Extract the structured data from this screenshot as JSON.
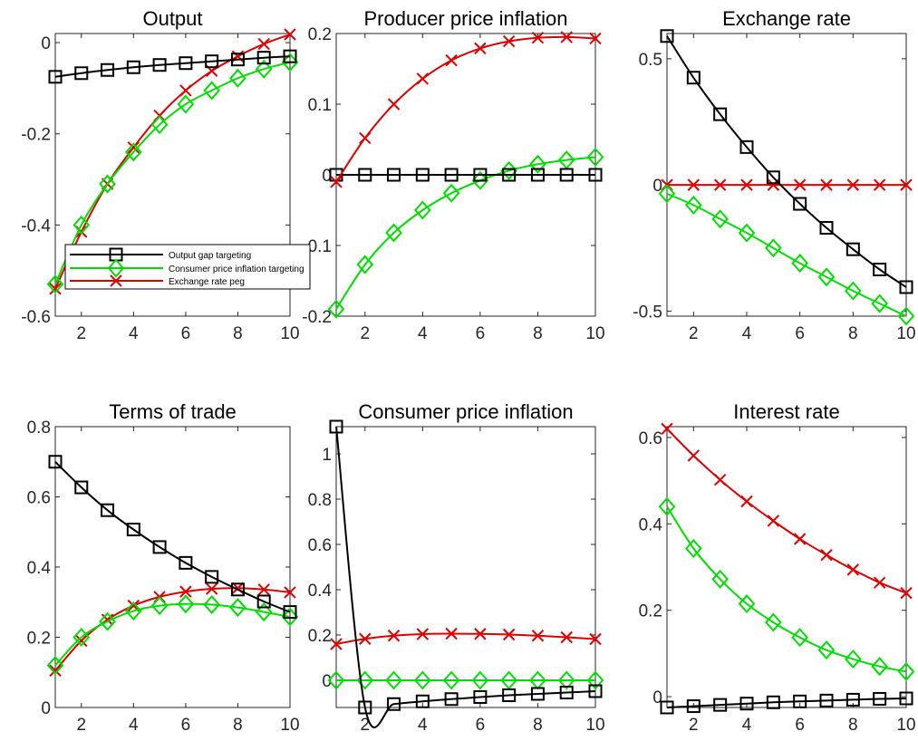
{
  "colors": {
    "output_gap": "#000000",
    "cpi_targeting": "#00e000",
    "peg": "#e00000"
  },
  "legend": {
    "entries": [
      {
        "label": "Output gap targeting",
        "color": "#000000",
        "marker": "square"
      },
      {
        "label": "Consumer price inflation targeting",
        "color": "#00e000",
        "marker": "diamond"
      },
      {
        "label": "Exchange rate peg",
        "color": "#e00000",
        "marker": "x"
      }
    ]
  },
  "chart_data": [
    {
      "type": "line",
      "title": "Output",
      "x": [
        1,
        2,
        3,
        4,
        5,
        6,
        7,
        8,
        9,
        10
      ],
      "xlim": [
        1,
        10
      ],
      "ylim": [
        -0.6,
        0.02
      ],
      "xticks": [
        2,
        4,
        6,
        8,
        10
      ],
      "yticks": [
        -0.6,
        -0.4,
        -0.2,
        0
      ],
      "ytick_labels": [
        "-0.6",
        "-0.4",
        "-0.2",
        "0"
      ],
      "series": [
        {
          "name": "Exchange rate peg",
          "color": "#e00000",
          "marker": "x",
          "values": [
            -0.54,
            -0.415,
            -0.31,
            -0.23,
            -0.16,
            -0.105,
            -0.062,
            -0.03,
            -0.003,
            0.018
          ]
        },
        {
          "name": "Consumer price inflation targeting",
          "color": "#00e000",
          "marker": "diamond",
          "values": [
            -0.53,
            -0.4,
            -0.31,
            -0.24,
            -0.18,
            -0.135,
            -0.105,
            -0.078,
            -0.058,
            -0.043
          ]
        },
        {
          "name": "Output gap targeting",
          "color": "#000000",
          "marker": "square",
          "values": [
            -0.075,
            -0.067,
            -0.06,
            -0.054,
            -0.049,
            -0.045,
            -0.041,
            -0.037,
            -0.033,
            -0.03
          ]
        }
      ]
    },
    {
      "type": "line",
      "title": "Producer price inflation",
      "x": [
        1,
        2,
        3,
        4,
        5,
        6,
        7,
        8,
        9,
        10
      ],
      "xlim": [
        1,
        10
      ],
      "ylim": [
        -0.2,
        0.2
      ],
      "xticks": [
        2,
        4,
        6,
        8,
        10
      ],
      "yticks": [
        -0.2,
        -0.1,
        0,
        0.1,
        0.2
      ],
      "ytick_labels": [
        "-0.2",
        "-0.1",
        "0",
        "0.1",
        "0.2"
      ],
      "series": [
        {
          "name": "Consumer price inflation targeting",
          "color": "#00e000",
          "marker": "diamond",
          "values": [
            -0.19,
            -0.127,
            -0.082,
            -0.05,
            -0.026,
            -0.008,
            0.006,
            0.015,
            0.021,
            0.025
          ]
        },
        {
          "name": "Output gap targeting",
          "color": "#000000",
          "marker": "square",
          "values": [
            0,
            0,
            0,
            0,
            0,
            0,
            0,
            0,
            0,
            0
          ]
        },
        {
          "name": "Exchange rate peg",
          "color": "#e00000",
          "marker": "x",
          "values": [
            -0.01,
            0.052,
            0.1,
            0.136,
            0.162,
            0.179,
            0.189,
            0.194,
            0.195,
            0.193
          ]
        }
      ]
    },
    {
      "type": "line",
      "title": "Exchange rate",
      "x": [
        1,
        2,
        3,
        4,
        5,
        6,
        7,
        8,
        9,
        10
      ],
      "xlim": [
        1,
        10
      ],
      "ylim": [
        -0.52,
        0.6
      ],
      "xticks": [
        2,
        4,
        6,
        8,
        10
      ],
      "yticks": [
        -0.5,
        0,
        0.5
      ],
      "ytick_labels": [
        "-0.5",
        "0",
        "0.5"
      ],
      "series": [
        {
          "name": "Exchange rate peg",
          "color": "#e00000",
          "marker": "x",
          "values": [
            0,
            0,
            0,
            0,
            0,
            0,
            0,
            0,
            0,
            0
          ]
        },
        {
          "name": "Consumer price inflation targeting",
          "color": "#00e000",
          "marker": "diamond",
          "values": [
            -0.035,
            -0.08,
            -0.135,
            -0.19,
            -0.25,
            -0.31,
            -0.365,
            -0.42,
            -0.47,
            -0.52
          ]
        },
        {
          "name": "Output gap targeting",
          "color": "#000000",
          "marker": "square",
          "values": [
            0.59,
            0.425,
            0.28,
            0.15,
            0.03,
            -0.075,
            -0.17,
            -0.255,
            -0.335,
            -0.405
          ]
        }
      ]
    },
    {
      "type": "line",
      "title": "Terms of trade",
      "x": [
        1,
        2,
        3,
        4,
        5,
        6,
        7,
        8,
        9,
        10
      ],
      "xlim": [
        1,
        10
      ],
      "ylim": [
        0,
        0.8
      ],
      "xticks": [
        2,
        4,
        6,
        8,
        10
      ],
      "yticks": [
        0,
        0.2,
        0.4,
        0.6,
        0.8
      ],
      "ytick_labels": [
        "0",
        "0.2",
        "0.4",
        "0.6",
        "0.8"
      ],
      "series": [
        {
          "name": "Exchange rate peg",
          "color": "#e00000",
          "marker": "x",
          "values": [
            0.105,
            0.19,
            0.25,
            0.29,
            0.315,
            0.33,
            0.338,
            0.34,
            0.336,
            0.328
          ]
        },
        {
          "name": "Consumer price inflation targeting",
          "color": "#00e000",
          "marker": "diamond",
          "values": [
            0.12,
            0.2,
            0.245,
            0.275,
            0.29,
            0.295,
            0.293,
            0.285,
            0.272,
            0.258
          ]
        },
        {
          "name": "Output gap targeting",
          "color": "#000000",
          "marker": "square",
          "values": [
            0.7,
            0.627,
            0.562,
            0.507,
            0.457,
            0.412,
            0.372,
            0.336,
            0.302,
            0.272
          ]
        }
      ]
    },
    {
      "type": "line",
      "title": "Consumer price inflation",
      "x": [
        1,
        2,
        3,
        4,
        5,
        6,
        7,
        8,
        9,
        10
      ],
      "xlim": [
        1,
        10
      ],
      "ylim": [
        -0.12,
        1.12
      ],
      "xticks": [
        2,
        4,
        6,
        8,
        10
      ],
      "yticks": [
        0,
        0.2,
        0.4,
        0.6,
        0.8,
        1
      ],
      "ytick_labels": [
        "0",
        "0.2",
        "0.4",
        "0.6",
        "0.8",
        "1"
      ],
      "series": [
        {
          "name": "Exchange rate peg",
          "color": "#e00000",
          "marker": "x",
          "values": [
            0.16,
            0.183,
            0.197,
            0.204,
            0.206,
            0.205,
            0.202,
            0.197,
            0.19,
            0.182
          ]
        },
        {
          "name": "Consumer price inflation targeting",
          "color": "#00e000",
          "marker": "diamond",
          "values": [
            0,
            0,
            0,
            0,
            0,
            0,
            0,
            0,
            0,
            0
          ]
        },
        {
          "name": "Output gap targeting",
          "color": "#000000",
          "marker": "square",
          "values": [
            1.12,
            -0.12,
            -0.105,
            -0.093,
            -0.083,
            -0.074,
            -0.066,
            -0.06,
            -0.054,
            -0.048
          ]
        }
      ]
    },
    {
      "type": "line",
      "title": "Interest rate",
      "x": [
        1,
        2,
        3,
        4,
        5,
        6,
        7,
        8,
        9,
        10
      ],
      "xlim": [
        1,
        10
      ],
      "ylim": [
        -0.025,
        0.625
      ],
      "xticks": [
        2,
        4,
        6,
        8,
        10
      ],
      "yticks": [
        0,
        0.2,
        0.4,
        0.6
      ],
      "ytick_labels": [
        "0",
        "0.2",
        "0.4",
        "0.6"
      ],
      "series": [
        {
          "name": "Exchange rate peg",
          "color": "#e00000",
          "marker": "x",
          "values": [
            0.62,
            0.558,
            0.502,
            0.452,
            0.407,
            0.365,
            0.328,
            0.294,
            0.264,
            0.24
          ]
        },
        {
          "name": "Consumer price inflation targeting",
          "color": "#00e000",
          "marker": "diamond",
          "values": [
            0.44,
            0.343,
            0.272,
            0.215,
            0.172,
            0.137,
            0.108,
            0.087,
            0.07,
            0.058
          ]
        },
        {
          "name": "Output gap targeting",
          "color": "#000000",
          "marker": "square",
          "values": [
            -0.025,
            -0.022,
            -0.019,
            -0.016,
            -0.013,
            -0.011,
            -0.009,
            -0.007,
            -0.005,
            -0.004
          ]
        }
      ]
    }
  ]
}
